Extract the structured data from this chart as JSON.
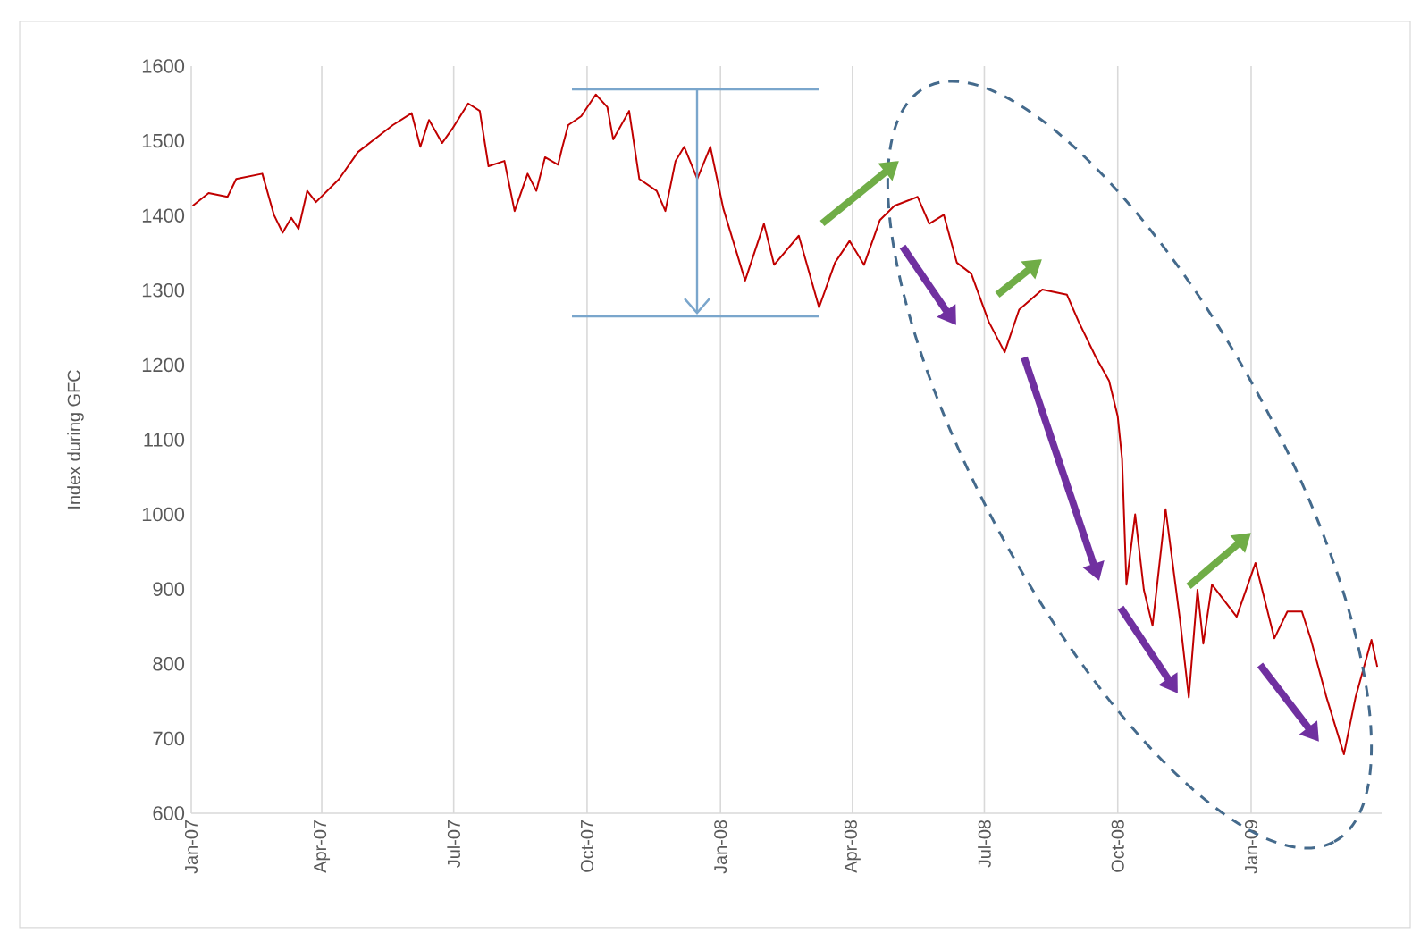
{
  "chart_data": {
    "type": "line",
    "ylabel": "Index during GFC",
    "x": [
      "2007-01-02",
      "2007-01-13",
      "2007-01-26",
      "2007-02-01",
      "2007-02-19",
      "2007-02-27",
      "2007-03-05",
      "2007-03-11",
      "2007-03-16",
      "2007-03-22",
      "2007-03-28",
      "2007-04-13",
      "2007-04-26",
      "2007-05-12",
      "2007-05-20",
      "2007-06-02",
      "2007-06-08",
      "2007-06-14",
      "2007-06-23",
      "2007-06-30",
      "2007-07-11",
      "2007-07-19",
      "2007-07-25",
      "2007-08-05",
      "2007-08-12",
      "2007-08-21",
      "2007-08-27",
      "2007-09-02",
      "2007-09-11",
      "2007-09-14",
      "2007-09-18",
      "2007-09-27",
      "2007-10-07",
      "2007-10-15",
      "2007-10-19",
      "2007-10-30",
      "2007-11-06",
      "2007-11-18",
      "2007-11-24",
      "2007-12-01",
      "2007-12-07",
      "2007-12-16",
      "2007-12-25",
      "2008-01-03",
      "2008-01-18",
      "2008-01-31",
      "2008-02-07",
      "2008-02-24",
      "2008-03-09",
      "2008-03-20",
      "2008-03-30",
      "2008-04-09",
      "2008-04-20",
      "2008-04-30",
      "2008-05-16",
      "2008-05-24",
      "2008-06-03",
      "2008-06-12",
      "2008-06-22",
      "2008-07-04",
      "2008-07-15",
      "2008-07-25",
      "2008-08-10",
      "2008-08-27",
      "2008-09-04",
      "2008-09-16",
      "2008-09-25",
      "2008-10-01",
      "2008-10-04",
      "2008-10-07",
      "2008-10-13",
      "2008-10-19",
      "2008-10-25",
      "2008-11-03",
      "2008-11-13",
      "2008-11-19",
      "2008-11-25",
      "2008-11-29",
      "2008-12-05",
      "2008-12-22",
      "2009-01-04",
      "2009-01-17",
      "2009-01-26",
      "2009-02-05",
      "2009-02-11",
      "2009-02-22",
      "2009-03-06",
      "2009-03-14",
      "2009-03-25",
      "2009-03-29"
    ],
    "series": [
      {
        "color": "#c00000",
        "values": [
          1413,
          1430,
          1425,
          1449,
          1456,
          1401,
          1377,
          1397,
          1382,
          1433,
          1418,
          1449,
          1485,
          1509,
          1521,
          1537,
          1492,
          1528,
          1497,
          1516,
          1550,
          1540,
          1466,
          1473,
          1406,
          1456,
          1433,
          1478,
          1468,
          1492,
          1521,
          1533,
          1562,
          1545,
          1502,
          1540,
          1449,
          1433,
          1406,
          1473,
          1492,
          1449,
          1492,
          1409,
          1313,
          1389,
          1334,
          1373,
          1277,
          1337,
          1366,
          1334,
          1394,
          1413,
          1425,
          1389,
          1401,
          1337,
          1322,
          1258,
          1217,
          1274,
          1301,
          1294,
          1258,
          1210,
          1179,
          1131,
          1074,
          906,
          1000,
          899,
          851,
          1007,
          858,
          755,
          899,
          827,
          906,
          863,
          935,
          834,
          870,
          870,
          834,
          755,
          679,
          755,
          832,
          796
        ]
      }
    ],
    "xlim": [
      "2007-01-01",
      "2009-04-01"
    ],
    "xticks": [
      {
        "value": "2007-01-01",
        "label": "Jan-07"
      },
      {
        "value": "2007-04-01",
        "label": "Apr-07"
      },
      {
        "value": "2007-07-01",
        "label": "Jul-07"
      },
      {
        "value": "2007-10-01",
        "label": "Oct-07"
      },
      {
        "value": "2008-01-01",
        "label": "Jan-08"
      },
      {
        "value": "2008-04-01",
        "label": "Apr-08"
      },
      {
        "value": "2008-07-01",
        "label": "Jul-08"
      },
      {
        "value": "2008-10-01",
        "label": "Oct-08"
      },
      {
        "value": "2009-01-01",
        "label": "Jan-09"
      }
    ],
    "ylim": [
      600,
      1600
    ],
    "yticks": [
      600,
      700,
      800,
      900,
      1000,
      1100,
      1200,
      1300,
      1400,
      1500,
      1600
    ],
    "grid": "x"
  }
}
